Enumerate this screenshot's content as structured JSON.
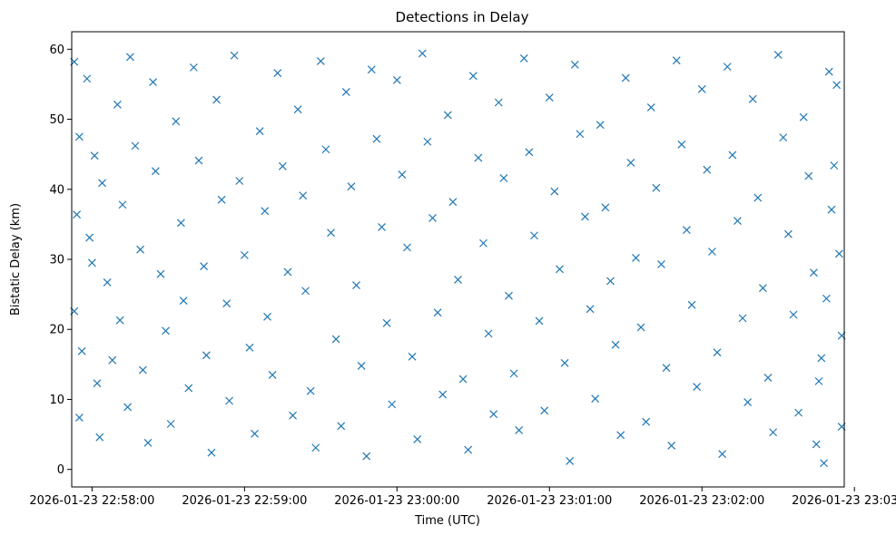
{
  "chart_data": {
    "type": "scatter",
    "title": "Detections in Delay",
    "xlabel": "Time (UTC)",
    "ylabel": "Bistatic Delay (km)",
    "x_domain": [
      "2026-01-23 22:57:52",
      "2026-01-23 23:02:56"
    ],
    "ylim": [
      -2.5,
      62.5
    ],
    "x_ticks": [
      "2026-01-23 22:58:00",
      "2026-01-23 22:59:00",
      "2026-01-23 23:00:00",
      "2026-01-23 23:01:00",
      "2026-01-23 23:02:00",
      "2026-01-23 23:03:00"
    ],
    "y_ticks": [
      0,
      10,
      20,
      30,
      40,
      50,
      60
    ],
    "y_tick_labels": [
      "0",
      "10",
      "20",
      "30",
      "40",
      "50",
      "60"
    ],
    "marker": "x",
    "color": "#1f77b4",
    "grid": false,
    "series": [
      {
        "points": [
          [
            "22:57:53",
            58.2
          ],
          [
            "22:57:55",
            47.5
          ],
          [
            "22:57:54",
            36.4
          ],
          [
            "22:57:53",
            22.6
          ],
          [
            "22:57:56",
            16.9
          ],
          [
            "22:57:55",
            7.4
          ],
          [
            "22:57:58",
            55.8
          ],
          [
            "22:58:01",
            44.8
          ],
          [
            "22:58:00",
            29.5
          ],
          [
            "22:58:02",
            12.3
          ],
          [
            "22:58:03",
            4.6
          ],
          [
            "22:57:59",
            33.1
          ],
          [
            "22:58:04",
            40.9
          ],
          [
            "22:58:06",
            26.7
          ],
          [
            "22:58:08",
            15.6
          ],
          [
            "22:58:10",
            52.1
          ],
          [
            "22:58:12",
            37.8
          ],
          [
            "22:58:11",
            21.3
          ],
          [
            "22:58:14",
            8.9
          ],
          [
            "22:58:15",
            58.9
          ],
          [
            "22:58:17",
            46.2
          ],
          [
            "22:58:19",
            31.4
          ],
          [
            "22:58:20",
            14.2
          ],
          [
            "22:58:22",
            3.8
          ],
          [
            "22:58:24",
            55.3
          ],
          [
            "22:58:25",
            42.6
          ],
          [
            "22:58:27",
            27.9
          ],
          [
            "22:58:29",
            19.8
          ],
          [
            "22:58:31",
            6.5
          ],
          [
            "22:58:33",
            49.7
          ],
          [
            "22:58:35",
            35.2
          ],
          [
            "22:58:36",
            24.1
          ],
          [
            "22:58:38",
            11.6
          ],
          [
            "22:58:40",
            57.4
          ],
          [
            "22:58:42",
            44.1
          ],
          [
            "22:58:44",
            29.0
          ],
          [
            "22:58:45",
            16.3
          ],
          [
            "22:58:47",
            2.4
          ],
          [
            "22:58:49",
            52.8
          ],
          [
            "22:58:51",
            38.5
          ],
          [
            "22:58:53",
            23.7
          ],
          [
            "22:58:54",
            9.8
          ],
          [
            "22:58:56",
            59.1
          ],
          [
            "22:58:58",
            41.2
          ],
          [
            "22:59:00",
            30.6
          ],
          [
            "22:59:02",
            17.4
          ],
          [
            "22:59:04",
            5.1
          ],
          [
            "22:59:06",
            48.3
          ],
          [
            "22:59:08",
            36.9
          ],
          [
            "22:59:09",
            21.8
          ],
          [
            "22:59:11",
            13.5
          ],
          [
            "22:59:13",
            56.6
          ],
          [
            "22:59:15",
            43.3
          ],
          [
            "22:59:17",
            28.2
          ],
          [
            "22:59:19",
            7.7
          ],
          [
            "22:59:21",
            51.4
          ],
          [
            "22:59:23",
            39.1
          ],
          [
            "22:59:24",
            25.5
          ],
          [
            "22:59:26",
            11.2
          ],
          [
            "22:59:28",
            3.1
          ],
          [
            "22:59:30",
            58.3
          ],
          [
            "22:59:32",
            45.7
          ],
          [
            "22:59:34",
            33.8
          ],
          [
            "22:59:36",
            18.6
          ],
          [
            "22:59:38",
            6.2
          ],
          [
            "22:59:40",
            53.9
          ],
          [
            "22:59:42",
            40.4
          ],
          [
            "22:59:44",
            26.3
          ],
          [
            "22:59:46",
            14.8
          ],
          [
            "22:59:48",
            1.9
          ],
          [
            "22:59:50",
            57.1
          ],
          [
            "22:59:52",
            47.2
          ],
          [
            "22:59:54",
            34.6
          ],
          [
            "22:59:56",
            20.9
          ],
          [
            "22:59:58",
            9.3
          ],
          [
            "23:00:00",
            55.6
          ],
          [
            "23:00:02",
            42.1
          ],
          [
            "23:00:04",
            31.7
          ],
          [
            "23:00:06",
            16.1
          ],
          [
            "23:00:08",
            4.3
          ],
          [
            "23:00:10",
            59.4
          ],
          [
            "23:00:12",
            46.8
          ],
          [
            "23:00:14",
            35.9
          ],
          [
            "23:00:16",
            22.4
          ],
          [
            "23:00:18",
            10.7
          ],
          [
            "23:00:20",
            50.6
          ],
          [
            "23:00:22",
            38.2
          ],
          [
            "23:00:24",
            27.1
          ],
          [
            "23:00:26",
            12.9
          ],
          [
            "23:00:28",
            2.8
          ],
          [
            "23:00:30",
            56.2
          ],
          [
            "23:00:32",
            44.5
          ],
          [
            "23:00:34",
            32.3
          ],
          [
            "23:00:36",
            19.4
          ],
          [
            "23:00:38",
            7.9
          ],
          [
            "23:00:40",
            52.4
          ],
          [
            "23:00:42",
            41.6
          ],
          [
            "23:00:44",
            24.8
          ],
          [
            "23:00:46",
            13.7
          ],
          [
            "23:00:48",
            5.6
          ],
          [
            "23:00:50",
            58.7
          ],
          [
            "23:00:52",
            45.3
          ],
          [
            "23:00:54",
            33.4
          ],
          [
            "23:00:56",
            21.2
          ],
          [
            "23:00:58",
            8.4
          ],
          [
            "23:01:00",
            53.1
          ],
          [
            "23:01:02",
            39.7
          ],
          [
            "23:01:04",
            28.6
          ],
          [
            "23:01:06",
            15.2
          ],
          [
            "23:01:08",
            1.2
          ],
          [
            "23:01:10",
            57.8
          ],
          [
            "23:01:12",
            47.9
          ],
          [
            "23:01:14",
            36.1
          ],
          [
            "23:01:16",
            22.9
          ],
          [
            "23:01:18",
            10.1
          ],
          [
            "23:01:20",
            49.2
          ],
          [
            "23:01:22",
            37.4
          ],
          [
            "23:01:24",
            26.9
          ],
          [
            "23:01:26",
            17.8
          ],
          [
            "23:01:28",
            4.9
          ],
          [
            "23:01:30",
            55.9
          ],
          [
            "23:01:32",
            43.8
          ],
          [
            "23:01:34",
            30.2
          ],
          [
            "23:01:36",
            20.3
          ],
          [
            "23:01:38",
            6.8
          ],
          [
            "23:01:40",
            51.7
          ],
          [
            "23:01:42",
            40.2
          ],
          [
            "23:01:44",
            29.3
          ],
          [
            "23:01:46",
            14.5
          ],
          [
            "23:01:48",
            3.4
          ],
          [
            "23:01:50",
            58.4
          ],
          [
            "23:01:52",
            46.4
          ],
          [
            "23:01:54",
            34.2
          ],
          [
            "23:01:56",
            23.5
          ],
          [
            "23:01:58",
            11.8
          ],
          [
            "23:02:00",
            54.3
          ],
          [
            "23:02:02",
            42.8
          ],
          [
            "23:02:04",
            31.1
          ],
          [
            "23:02:06",
            16.7
          ],
          [
            "23:02:08",
            2.2
          ],
          [
            "23:02:10",
            57.5
          ],
          [
            "23:02:12",
            44.9
          ],
          [
            "23:02:14",
            35.5
          ],
          [
            "23:02:16",
            21.6
          ],
          [
            "23:02:18",
            9.6
          ],
          [
            "23:02:20",
            52.9
          ],
          [
            "23:02:22",
            38.8
          ],
          [
            "23:02:24",
            25.9
          ],
          [
            "23:02:26",
            13.1
          ],
          [
            "23:02:28",
            5.3
          ],
          [
            "23:02:30",
            59.2
          ],
          [
            "23:02:32",
            47.4
          ],
          [
            "23:02:34",
            33.6
          ],
          [
            "23:02:36",
            22.1
          ],
          [
            "23:02:38",
            8.1
          ],
          [
            "23:02:40",
            50.3
          ],
          [
            "23:02:42",
            41.9
          ],
          [
            "23:02:44",
            28.1
          ],
          [
            "23:02:46",
            12.6
          ],
          [
            "23:02:48",
            0.9
          ],
          [
            "23:02:50",
            56.8
          ],
          [
            "23:02:52",
            43.4
          ],
          [
            "23:02:54",
            30.8
          ],
          [
            "23:02:55",
            19.1
          ],
          [
            "23:02:55",
            6.1
          ],
          [
            "23:02:53",
            54.9
          ],
          [
            "23:02:51",
            37.1
          ],
          [
            "23:02:49",
            24.4
          ],
          [
            "23:02:47",
            15.9
          ],
          [
            "23:02:45",
            3.6
          ]
        ]
      }
    ]
  }
}
